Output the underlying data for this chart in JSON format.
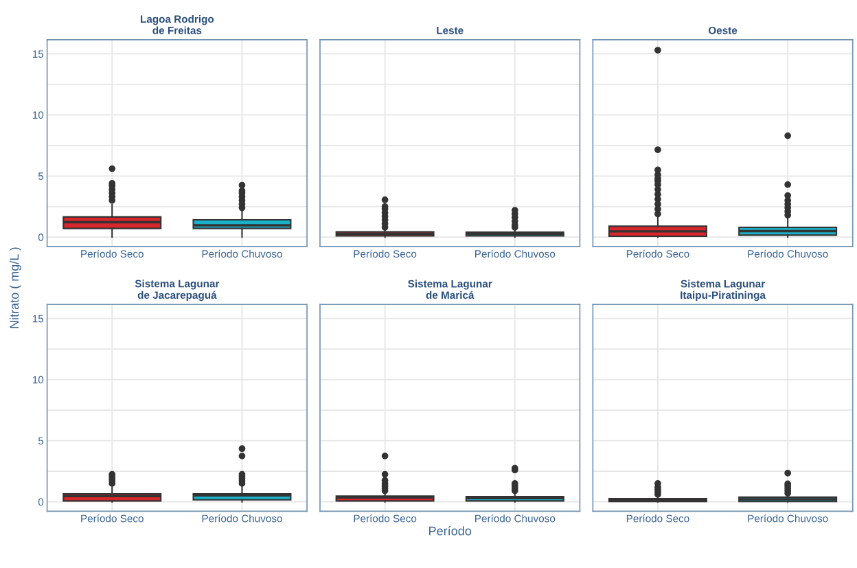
{
  "chart_data": [
    {
      "type": "box",
      "title": "Lagoa Rodrigo\nde Freitas",
      "categories": [
        "Período Seco",
        "Período Chuvoso"
      ],
      "colors": [
        "#d7262c",
        "#1ab0c8"
      ],
      "ylim": [
        -0.77,
        16.15
      ],
      "yticks": [
        0,
        {
          "value": 2.5,
          "label": null
        },
        5,
        {
          "value": 7.5,
          "label": null
        },
        10,
        {
          "value": 12.5,
          "label": null
        },
        15
      ],
      "grid": true,
      "boxes": [
        {
          "low": 0,
          "q1": 0.71,
          "median": 1.22,
          "q3": 1.65,
          "high": 2.67,
          "outliers": [
            3.0,
            3.3,
            3.6,
            3.9,
            4.2,
            4.4,
            5.6
          ]
        },
        {
          "low": 0,
          "q1": 0.71,
          "median": 0.97,
          "q3": 1.42,
          "high": 2.17,
          "outliers": [
            2.4,
            2.7,
            3.0,
            3.3,
            3.6,
            3.8,
            4.25
          ]
        }
      ]
    },
    {
      "type": "box",
      "title": "Leste",
      "categories": [
        "Período Seco",
        "Período Chuvoso"
      ],
      "colors": [
        "#d7262c",
        "#1ab0c8"
      ],
      "ylim": [
        -0.77,
        16.15
      ],
      "yticks": [
        0,
        {
          "value": 2.5,
          "label": null
        },
        5,
        {
          "value": 7.5,
          "label": null
        },
        10,
        {
          "value": 12.5,
          "label": null
        },
        15
      ],
      "grid": true,
      "tick_labels": "x",
      "boxes": [
        {
          "low": 0,
          "q1": 0.1,
          "median": 0.25,
          "q3": 0.43,
          "high": 0.75,
          "outliers": [
            0.8,
            1.1,
            1.4,
            1.7,
            2.0,
            2.3,
            2.5,
            3.05
          ]
        },
        {
          "low": 0,
          "q1": 0.1,
          "median": 0.25,
          "q3": 0.4,
          "high": 0.7,
          "outliers": [
            0.8,
            1.0,
            1.3,
            1.6,
            1.9,
            2.2
          ]
        }
      ]
    },
    {
      "type": "box",
      "title": "Oeste",
      "categories": [
        "Período Seco",
        "Período Chuvoso"
      ],
      "colors": [
        "#d7262c",
        "#1ab0c8"
      ],
      "ylim": [
        -0.77,
        16.15
      ],
      "yticks": [
        0,
        {
          "value": 2.5,
          "label": null
        },
        5,
        {
          "value": 7.5,
          "label": null
        },
        10,
        {
          "value": 12.5,
          "label": null
        },
        15
      ],
      "grid": true,
      "tick_labels": "x",
      "boxes": [
        {
          "low": 0,
          "q1": 0.07,
          "median": 0.47,
          "q3": 0.89,
          "high": 1.71,
          "outliers": [
            1.9,
            2.3,
            2.7,
            3.1,
            3.5,
            3.9,
            4.3,
            4.6,
            4.8,
            5.1,
            5.5,
            7.15,
            15.3
          ]
        },
        {
          "low": 0,
          "q1": 0.16,
          "median": 0.49,
          "q3": 0.8,
          "high": 1.62,
          "outliers": [
            1.8,
            2.1,
            2.4,
            2.7,
            3.0,
            3.4,
            4.3,
            8.3
          ]
        }
      ]
    },
    {
      "type": "box",
      "title": "Sistema Lagunar\nde Jacarepaguá",
      "ylabel": "Nitrato ( mg/L )",
      "categories": [
        "Período Seco",
        "Período Chuvoso"
      ],
      "colors": [
        "#d7262c",
        "#1ab0c8"
      ],
      "ylim": [
        -0.77,
        16.15
      ],
      "yticks": [
        0,
        {
          "value": 2.5,
          "label": null
        },
        5,
        {
          "value": 7.5,
          "label": null
        },
        10,
        {
          "value": 12.5,
          "label": null
        },
        15
      ],
      "grid": true,
      "boxes": [
        {
          "low": 0,
          "q1": 0.07,
          "median": 0.47,
          "q3": 0.65,
          "high": 1.3,
          "outliers": [
            1.5,
            1.7,
            1.9,
            2.1,
            2.25
          ]
        },
        {
          "low": 0,
          "q1": 0.16,
          "median": 0.53,
          "q3": 0.65,
          "high": 1.3,
          "outliers": [
            1.5,
            1.7,
            1.9,
            2.1,
            2.25,
            3.75,
            4.35
          ]
        }
      ]
    },
    {
      "type": "box",
      "title": "Sistema Lagunar\nde Maricá",
      "xlabel": "Período",
      "categories": [
        "Período Seco",
        "Período Chuvoso"
      ],
      "colors": [
        "#d7262c",
        "#1ab0c8"
      ],
      "ylim": [
        -0.77,
        16.15
      ],
      "yticks": [
        0,
        {
          "value": 2.5,
          "label": null
        },
        5,
        {
          "value": 7.5,
          "label": null
        },
        10,
        {
          "value": 12.5,
          "label": null
        },
        15
      ],
      "grid": true,
      "tick_labels": "x",
      "boxes": [
        {
          "low": 0,
          "q1": 0.07,
          "median": 0.36,
          "q3": 0.47,
          "high": 0.75,
          "outliers": [
            0.9,
            1.1,
            1.3,
            1.5,
            1.75,
            2.25,
            3.75
          ]
        },
        {
          "low": 0,
          "q1": 0.07,
          "median": 0.3,
          "q3": 0.42,
          "high": 0.75,
          "outliers": [
            0.9,
            1.1,
            1.3,
            1.5,
            2.6,
            2.75
          ]
        }
      ]
    },
    {
      "type": "box",
      "title": "Sistema Lagunar\nItaipu-Piratininga",
      "categories": [
        "Período Seco",
        "Período Chuvoso"
      ],
      "colors": [
        "#d7262c",
        "#1ab0c8"
      ],
      "ylim": [
        -0.77,
        16.15
      ],
      "yticks": [
        0,
        {
          "value": 2.5,
          "label": null
        },
        5,
        {
          "value": 7.5,
          "label": null
        },
        10,
        {
          "value": 12.5,
          "label": null
        },
        15
      ],
      "grid": true,
      "tick_labels": "x",
      "boxes": [
        {
          "low": 0,
          "q1": 0.02,
          "median": 0.15,
          "q3": 0.26,
          "high": 0.5,
          "outliers": [
            0.6,
            0.8,
            1.0,
            1.2,
            1.5
          ]
        },
        {
          "low": 0,
          "q1": 0.02,
          "median": 0.2,
          "q3": 0.38,
          "high": 0.5,
          "outliers": [
            0.7,
            0.9,
            1.1,
            1.3,
            1.47,
            2.35
          ]
        }
      ]
    }
  ]
}
